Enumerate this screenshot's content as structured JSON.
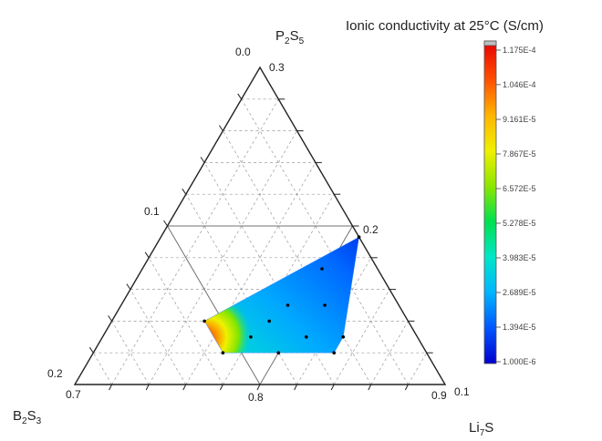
{
  "chart_data": {
    "type": "ternary-contour",
    "vertices": {
      "top": {
        "label_base": "P",
        "label_sub": "2",
        "label_rest": "S",
        "label_sub2": "5"
      },
      "left": {
        "label_base": "B",
        "label_sub": "2",
        "label_rest": "S",
        "label_sub2": "3"
      },
      "right": {
        "label_base": "Li",
        "label_sub": "7",
        "label_rest": "S",
        "label_sub2": ""
      }
    },
    "axes": {
      "bottom": {
        "variable": "Li7S",
        "range": [
          0.7,
          0.9
        ],
        "ticks": [
          0.7,
          0.8,
          0.9
        ]
      },
      "right": {
        "variable": "P2S5",
        "range": [
          0.1,
          0.3
        ],
        "ticks": [
          0.1,
          0.2,
          0.3
        ]
      },
      "left": {
        "variable": "B2S3",
        "range": [
          0.0,
          0.2
        ],
        "ticks": [
          0.0,
          0.1,
          0.2
        ]
      }
    },
    "tick_labels": {
      "bottom": [
        "0.7",
        "0.8",
        "0.9"
      ],
      "right": [
        "0.1",
        "0.2",
        "0.3"
      ],
      "left": [
        "0.0",
        "0.1",
        "0.2"
      ]
    },
    "points": [
      {
        "li7s": 0.807,
        "p2s5": 0.193,
        "b2s3": 0.0
      },
      {
        "li7s": 0.797,
        "p2s5": 0.173,
        "b2s3": 0.03
      },
      {
        "li7s": 0.81,
        "p2s5": 0.15,
        "b2s3": 0.04
      },
      {
        "li7s": 0.83,
        "p2s5": 0.13,
        "b2s3": 0.04
      },
      {
        "li7s": 0.83,
        "p2s5": 0.12,
        "b2s3": 0.05
      },
      {
        "li7s": 0.81,
        "p2s5": 0.13,
        "b2s3": 0.06
      },
      {
        "li7s": 0.79,
        "p2s5": 0.15,
        "b2s3": 0.06
      },
      {
        "li7s": 0.785,
        "p2s5": 0.14,
        "b2s3": 0.075
      },
      {
        "li7s": 0.75,
        "p2s5": 0.14,
        "b2s3": 0.11
      },
      {
        "li7s": 0.77,
        "p2s5": 0.12,
        "b2s3": 0.11
      },
      {
        "li7s": 0.78,
        "p2s5": 0.13,
        "b2s3": 0.09
      },
      {
        "li7s": 0.8,
        "p2s5": 0.12,
        "b2s3": 0.08
      }
    ],
    "colorbar": {
      "title": "Ionic conductivity at 25°C (S/cm)",
      "min": 1e-06,
      "max": 0.0001175,
      "tick_values": [
        0.0001175,
        0.0001046,
        9.161e-05,
        7.867e-05,
        6.572e-05,
        5.278e-05,
        3.983e-05,
        2.689e-05,
        1.394e-05,
        1e-06
      ],
      "tick_labels": [
        "1.175E-4",
        "1.046E-4",
        "9.161E-5",
        "7.867E-5",
        "6.572E-5",
        "5.278E-5",
        "3.983E-5",
        "2.689E-5",
        "1.394E-5",
        "1.000E-6"
      ],
      "colors": [
        "#0000cc",
        "#0055ff",
        "#00b4ff",
        "#00e6c8",
        "#00e050",
        "#8ce600",
        "#f0f000",
        "#ffb400",
        "#ff5000",
        "#e60000"
      ]
    },
    "colors": {
      "axis": "#222222",
      "grid": "#9a9a9a",
      "major_grid": "#707070",
      "point": "#000000"
    }
  }
}
